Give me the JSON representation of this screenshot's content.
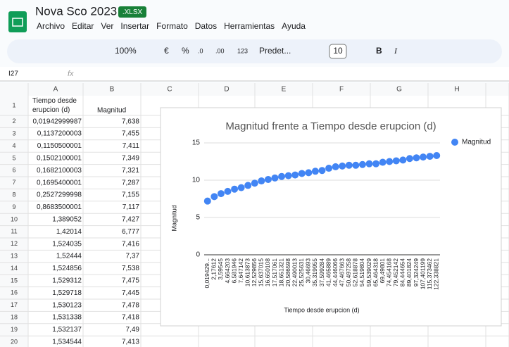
{
  "header": {
    "title": "Nova Sco 2023",
    "badge": ".XLSX",
    "menu": [
      "Archivo",
      "Editar",
      "Ver",
      "Insertar",
      "Formato",
      "Datos",
      "Herramientas",
      "Ayuda"
    ]
  },
  "toolbar": [
    "100%",
    "€",
    "%",
    ".0",
    ".00",
    "123",
    "Predet...",
    "10",
    "B",
    "I"
  ],
  "formula_bar": {
    "cell": "I27",
    "fx": "fx"
  },
  "sheet": {
    "columns": [
      "A",
      "B",
      "C",
      "D",
      "E",
      "F",
      "G",
      "H"
    ],
    "rows": [
      [
        "1",
        "Tiempo desde erupcion (d)",
        "Magnitud"
      ],
      [
        "2",
        "0,01942999987",
        "7,638"
      ],
      [
        "3",
        "0,1137200003",
        "7,455"
      ],
      [
        "4",
        "0,1150500001",
        "7,411"
      ],
      [
        "5",
        "0,1502100001",
        "7,349"
      ],
      [
        "6",
        "0,1682100003",
        "7,321"
      ],
      [
        "7",
        "0,1695400001",
        "7,287"
      ],
      [
        "8",
        "0,2527299998",
        "7,155"
      ],
      [
        "9",
        "0,8683500001",
        "7,117"
      ],
      [
        "10",
        "1,389052",
        "7,427"
      ],
      [
        "11",
        "1,42014",
        "6,777"
      ],
      [
        "12",
        "1,524035",
        "7,416"
      ],
      [
        "13",
        "1,52444",
        "7,37"
      ],
      [
        "14",
        "1,524856",
        "7,538"
      ],
      [
        "15",
        "1,529312",
        "7,475"
      ],
      [
        "16",
        "1,529718",
        "7,445"
      ],
      [
        "17",
        "1,530123",
        "7,478"
      ],
      [
        "18",
        "1,531338",
        "7,418"
      ],
      [
        "19",
        "1,532137",
        "7,49"
      ],
      [
        "20",
        "1,534544",
        "7,413"
      ]
    ]
  },
  "chart_data": {
    "type": "scatter",
    "title": "Magnitud frente a Tiempo desde erupcion (d)",
    "x_label": "Tiempo desde erupcion (d)",
    "y_label": "Magnitud",
    "categories": [
      "0,019429...",
      "2,17612",
      "3,59545",
      "4,664203",
      "6,581946",
      "7,647142",
      "10,613873",
      "12,529856",
      "15,637015",
      "16,650108",
      "17,517061",
      "18,651321",
      "20,586598",
      "22,490013",
      "25,525631",
      "30,46693",
      "35,319955",
      "37,599284",
      "41,465889",
      "44,446066",
      "47,467663",
      "50,497258",
      "52,618878",
      "54,519804",
      "59,539029",
      "65,464318",
      "69,49801",
      "74,454168",
      "79,452142",
      "84,444654",
      "89,401824",
      "97,324249",
      "107,401199",
      "115,373462",
      "122,338821"
    ],
    "series": [
      {
        "name": "Magnitud",
        "color": "#4285f4",
        "values": [
          7.2,
          7.8,
          8.2,
          8.5,
          8.8,
          9.0,
          9.3,
          9.6,
          9.9,
          10.1,
          10.3,
          10.5,
          10.6,
          10.7,
          10.9,
          11.0,
          11.2,
          11.3,
          11.6,
          11.8,
          11.9,
          12.0,
          12.0,
          12.1,
          12.2,
          12.2,
          12.4,
          12.5,
          12.6,
          12.7,
          12.9,
          13.0,
          13.1,
          13.2,
          13.3
        ]
      }
    ],
    "ylim": [
      0,
      15
    ],
    "yticks": [
      0,
      5,
      10,
      15
    ],
    "grid": true,
    "legend": "right"
  }
}
